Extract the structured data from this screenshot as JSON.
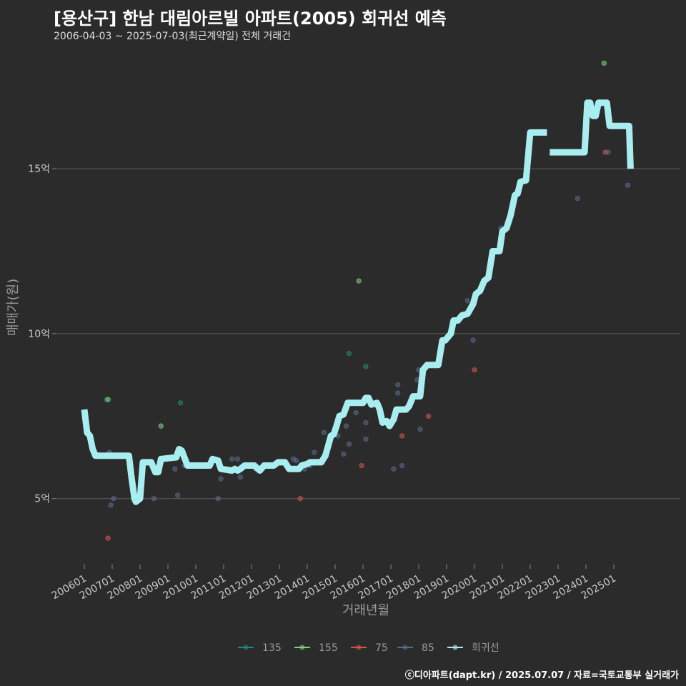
{
  "header": {
    "title": "[용산구] 한남 대림아르빌 아파트(2005) 회귀선 예측",
    "subtitle": "2006-04-03 ~ 2025-07-03(최근계약일) 전체 거래건"
  },
  "footer": {
    "caption": "ⓒ디아파트(dapt.kr) / 2025.07.07 / 자료=국토교통부 실거래가"
  },
  "chart_data": {
    "type": "scatter",
    "title": "[용산구] 한남 대림아르빌 아파트(2005) 회귀선 예측",
    "xlabel": "거래년월",
    "ylabel": "매매가(원)",
    "xlim": [
      2006.0,
      2025.9
    ],
    "ylim": [
      3.0,
      18.6
    ],
    "y_ticks": [
      {
        "value": 5,
        "label": "5억"
      },
      {
        "value": 10,
        "label": "10억"
      },
      {
        "value": 15,
        "label": "15억"
      }
    ],
    "x_ticks": [
      {
        "value": 2006.0,
        "label": "200601"
      },
      {
        "value": 2007.0,
        "label": "200701"
      },
      {
        "value": 2008.0,
        "label": "200801"
      },
      {
        "value": 2009.0,
        "label": "200901"
      },
      {
        "value": 2010.0,
        "label": "201001"
      },
      {
        "value": 2011.0,
        "label": "201101"
      },
      {
        "value": 2012.0,
        "label": "201201"
      },
      {
        "value": 2013.0,
        "label": "201301"
      },
      {
        "value": 2014.0,
        "label": "201401"
      },
      {
        "value": 2015.0,
        "label": "201501"
      },
      {
        "value": 2016.0,
        "label": "201601"
      },
      {
        "value": 2017.0,
        "label": "201701"
      },
      {
        "value": 2018.0,
        "label": "201801"
      },
      {
        "value": 2019.0,
        "label": "201901"
      },
      {
        "value": 2020.0,
        "label": "202001"
      },
      {
        "value": 2021.0,
        "label": "202101"
      },
      {
        "value": 2022.0,
        "label": "202201"
      },
      {
        "value": 2023.0,
        "label": "202301"
      },
      {
        "value": 2024.0,
        "label": "202401"
      },
      {
        "value": 2025.0,
        "label": "202501"
      }
    ],
    "legend": [
      {
        "name": "135",
        "color": "#1f8a78"
      },
      {
        "name": "155",
        "color": "#7ed37a"
      },
      {
        "name": "75",
        "color": "#d9534f"
      },
      {
        "name": "85",
        "color": "#5a6b8c"
      },
      {
        "name": "회귀선",
        "color": "#a8eef0"
      }
    ],
    "series": [
      {
        "name": "135",
        "color": "#1f8a78",
        "points": [
          [
            2006.8,
            8.0
          ],
          [
            2009.45,
            7.9
          ],
          [
            2015.5,
            9.4
          ],
          [
            2016.1,
            9.0
          ]
        ]
      },
      {
        "name": "155",
        "color": "#7ed37a",
        "points": [
          [
            2006.85,
            8.0
          ],
          [
            2008.75,
            7.2
          ],
          [
            2015.85,
            11.6
          ],
          [
            2024.65,
            18.2
          ]
        ]
      },
      {
        "name": "75",
        "color": "#d9534f",
        "points": [
          [
            2006.85,
            3.8
          ],
          [
            2013.75,
            5.0
          ],
          [
            2015.95,
            6.0
          ],
          [
            2017.4,
            6.9
          ],
          [
            2018.35,
            7.5
          ],
          [
            2020.0,
            8.9
          ],
          [
            2024.7,
            15.5
          ]
        ]
      },
      {
        "name": "85",
        "color": "#5a6b8c",
        "points": [
          [
            2006.9,
            6.4
          ],
          [
            2006.95,
            4.8
          ],
          [
            2007.05,
            5.0
          ],
          [
            2008.5,
            5.0
          ],
          [
            2009.25,
            5.9
          ],
          [
            2009.35,
            5.1
          ],
          [
            2009.6,
            6.0
          ],
          [
            2010.8,
            5.0
          ],
          [
            2010.9,
            5.6
          ],
          [
            2011.3,
            6.2
          ],
          [
            2011.5,
            6.2
          ],
          [
            2011.6,
            5.65
          ],
          [
            2012.15,
            5.9
          ],
          [
            2012.5,
            6.0
          ],
          [
            2013.5,
            6.2
          ],
          [
            2013.6,
            6.15
          ],
          [
            2013.9,
            5.9
          ],
          [
            2014.1,
            6.0
          ],
          [
            2014.25,
            6.4
          ],
          [
            2014.55,
            6.1
          ],
          [
            2014.6,
            7.0
          ],
          [
            2015.1,
            6.9
          ],
          [
            2015.3,
            6.35
          ],
          [
            2015.4,
            7.2
          ],
          [
            2015.5,
            6.65
          ],
          [
            2015.75,
            7.6
          ],
          [
            2016.1,
            6.8
          ],
          [
            2016.1,
            7.3
          ],
          [
            2017.1,
            5.9
          ],
          [
            2017.25,
            8.2
          ],
          [
            2017.25,
            8.45
          ],
          [
            2017.4,
            6.0
          ],
          [
            2017.95,
            8.6
          ],
          [
            2018.0,
            8.9
          ],
          [
            2018.05,
            7.1
          ],
          [
            2019.75,
            11.0
          ],
          [
            2019.95,
            9.8
          ],
          [
            2020.95,
            13.2
          ],
          [
            2023.7,
            14.1
          ],
          [
            2024.8,
            15.5
          ],
          [
            2025.5,
            14.5
          ]
        ]
      }
    ],
    "regression": {
      "name": "회귀선",
      "color": "#a8eef0",
      "segments": [
        [
          [
            2006.0,
            7.7
          ],
          [
            2006.1,
            7.0
          ],
          [
            2006.2,
            6.9
          ],
          [
            2006.3,
            6.5
          ],
          [
            2006.4,
            6.3
          ],
          [
            2007.5,
            6.3
          ],
          [
            2007.6,
            6.3
          ],
          [
            2007.7,
            5.6
          ],
          [
            2007.8,
            5.0
          ],
          [
            2007.85,
            4.9
          ],
          [
            2008.0,
            5.0
          ],
          [
            2008.1,
            6.1
          ],
          [
            2008.4,
            6.1
          ],
          [
            2008.55,
            5.8
          ],
          [
            2008.65,
            5.8
          ],
          [
            2008.75,
            6.2
          ],
          [
            2009.3,
            6.25
          ],
          [
            2009.4,
            6.5
          ],
          [
            2009.5,
            6.45
          ],
          [
            2009.7,
            6.0
          ],
          [
            2010.5,
            6.0
          ],
          [
            2010.6,
            6.2
          ],
          [
            2010.8,
            6.15
          ],
          [
            2010.9,
            5.9
          ],
          [
            2011.3,
            5.85
          ],
          [
            2011.4,
            5.9
          ],
          [
            2011.5,
            5.85
          ],
          [
            2011.6,
            5.9
          ],
          [
            2011.75,
            6.0
          ],
          [
            2012.1,
            6.0
          ],
          [
            2012.3,
            5.85
          ],
          [
            2012.45,
            6.0
          ],
          [
            2012.8,
            6.0
          ],
          [
            2012.95,
            6.1
          ],
          [
            2013.2,
            6.1
          ],
          [
            2013.35,
            5.9
          ],
          [
            2013.7,
            5.9
          ],
          [
            2013.8,
            6.0
          ],
          [
            2014.0,
            6.05
          ],
          [
            2014.1,
            6.1
          ],
          [
            2014.5,
            6.1
          ],
          [
            2014.65,
            6.3
          ],
          [
            2014.75,
            6.6
          ],
          [
            2014.85,
            6.9
          ],
          [
            2014.95,
            6.95
          ],
          [
            2015.05,
            7.2
          ],
          [
            2015.15,
            7.5
          ],
          [
            2015.3,
            7.55
          ],
          [
            2015.45,
            7.9
          ],
          [
            2016.0,
            7.9
          ],
          [
            2016.1,
            8.05
          ],
          [
            2016.2,
            8.05
          ],
          [
            2016.3,
            7.85
          ],
          [
            2016.5,
            7.9
          ],
          [
            2016.6,
            7.7
          ],
          [
            2016.7,
            7.3
          ],
          [
            2016.85,
            7.35
          ],
          [
            2016.95,
            7.2
          ],
          [
            2017.1,
            7.4
          ],
          [
            2017.2,
            7.7
          ],
          [
            2017.55,
            7.7
          ],
          [
            2017.65,
            7.8
          ],
          [
            2017.8,
            8.1
          ],
          [
            2018.05,
            8.1
          ],
          [
            2018.15,
            8.9
          ],
          [
            2018.3,
            9.05
          ],
          [
            2018.7,
            9.05
          ],
          [
            2018.85,
            9.8
          ],
          [
            2018.95,
            9.8
          ],
          [
            2019.15,
            10.0
          ],
          [
            2019.25,
            10.4
          ],
          [
            2019.4,
            10.4
          ],
          [
            2019.55,
            10.55
          ],
          [
            2019.75,
            10.6
          ],
          [
            2019.95,
            10.9
          ],
          [
            2020.05,
            11.2
          ],
          [
            2020.2,
            11.3
          ],
          [
            2020.35,
            11.6
          ],
          [
            2020.5,
            11.7
          ],
          [
            2020.65,
            12.5
          ],
          [
            2020.9,
            12.5
          ],
          [
            2021.0,
            13.1
          ],
          [
            2021.15,
            13.2
          ],
          [
            2021.3,
            13.6
          ],
          [
            2021.45,
            14.2
          ],
          [
            2021.55,
            14.25
          ],
          [
            2021.65,
            14.6
          ],
          [
            2021.85,
            14.65
          ],
          [
            2022.0,
            16.1
          ],
          [
            2022.6,
            16.1
          ]
        ],
        [
          [
            2022.7,
            15.5
          ],
          [
            2023.95,
            15.5
          ],
          [
            2024.05,
            17.0
          ],
          [
            2024.15,
            17.0
          ],
          [
            2024.25,
            16.6
          ],
          [
            2024.35,
            16.6
          ],
          [
            2024.45,
            17.0
          ],
          [
            2024.75,
            17.0
          ],
          [
            2024.85,
            16.3
          ],
          [
            2025.55,
            16.3
          ],
          [
            2025.6,
            15.0
          ]
        ]
      ]
    }
  }
}
